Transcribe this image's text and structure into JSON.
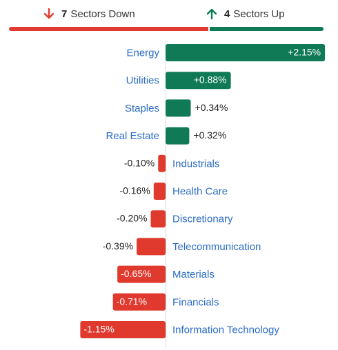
{
  "header": {
    "down_count": "7",
    "down_text": "Sectors Down",
    "up_count": "4",
    "up_text": "Sectors Up"
  },
  "colors": {
    "down": "#e03a2e",
    "up": "#0f7a55",
    "label": "#2b6cc4"
  },
  "chart_data": {
    "type": "bar",
    "orientation": "horizontal",
    "categories": [
      "Energy",
      "Utilities",
      "Staples",
      "Real Estate",
      "Industrials",
      "Health Care",
      "Discretionary",
      "Telecommunication",
      "Materials",
      "Financials",
      "Information Technology"
    ],
    "values": [
      2.15,
      0.88,
      0.34,
      0.32,
      -0.1,
      -0.16,
      -0.2,
      -0.39,
      -0.65,
      -0.71,
      -1.15
    ],
    "value_labels": [
      "+2.15%",
      "+0.88%",
      "+0.34%",
      "+0.32%",
      "-0.10%",
      "-0.16%",
      "-0.20%",
      "-0.39%",
      "-0.65%",
      "-0.71%",
      "-1.15%"
    ]
  }
}
